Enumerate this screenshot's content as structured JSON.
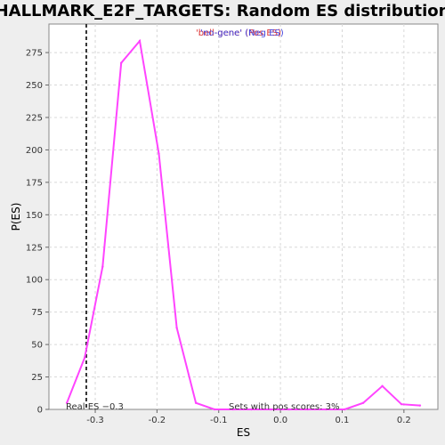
{
  "chart_data": {
    "type": "line",
    "title": "HALLMARK_E2F_TARGETS: Random ES distribution",
    "xlabel": "ES",
    "ylabel": "P(ES)",
    "xlim": [
      -0.375,
      0.255
    ],
    "ylim": [
      0,
      297
    ],
    "xticks": [
      -0.3,
      -0.2,
      -0.1,
      0.0,
      0.1,
      0.2
    ],
    "xtick_labels": [
      "-0.3",
      "-0.2",
      "-0.1",
      "0.0",
      "0.1",
      "0.2"
    ],
    "yticks": [
      0,
      25,
      50,
      75,
      100,
      125,
      150,
      175,
      200,
      225,
      250,
      275
    ],
    "ytick_labels": [
      "0",
      "25",
      "50",
      "75",
      "100",
      "125",
      "150",
      "175",
      "200",
      "225",
      "250",
      "275"
    ],
    "grid": true,
    "series": [
      {
        "color": "#ff44ff",
        "x": [
          -0.346,
          -0.317,
          -0.288,
          -0.258,
          -0.228,
          -0.197,
          -0.168,
          -0.137,
          -0.107,
          -0.077,
          -0.047,
          -0.016,
          0.014,
          0.044,
          0.074,
          0.104,
          0.134,
          0.165,
          0.196,
          0.226
        ],
        "y": [
          5,
          40,
          110,
          267,
          284,
          197,
          63,
          5,
          0,
          0,
          0,
          0,
          0,
          0,
          0,
          0,
          5,
          18,
          4,
          3
        ]
      }
    ],
    "real_es": -0.3145,
    "legend": {
      "placement": "top-center",
      "entries": [
        {
          "text": "'bell-gene' (Pos ES)",
          "color": "#dd3333"
        },
        {
          "text": "'no-gene' (Neg ES)",
          "color": "#4444dd"
        }
      ]
    },
    "annotations": {
      "real_es_label": "Real ES −0.3",
      "pos_scores_label": "Sets with pos scores: 3%"
    }
  }
}
